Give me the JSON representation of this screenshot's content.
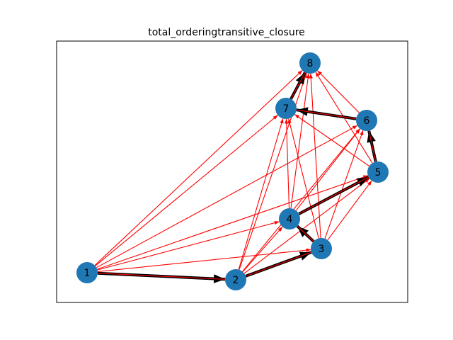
{
  "figure": {
    "title": "total_orderingtransitive_closure"
  },
  "graph": {
    "node_color": "#1f77b4",
    "label_color": "#000000",
    "highlight_edge_color": "#000000",
    "closure_edge_color": "#ff0000",
    "nodes": [
      {
        "id": "1",
        "label": "1"
      },
      {
        "id": "2",
        "label": "2"
      },
      {
        "id": "3",
        "label": "3"
      },
      {
        "id": "4",
        "label": "4"
      },
      {
        "id": "5",
        "label": "5"
      },
      {
        "id": "6",
        "label": "6"
      },
      {
        "id": "7",
        "label": "7"
      },
      {
        "id": "8",
        "label": "8"
      }
    ],
    "ordering_edges": [
      [
        "1",
        "2"
      ],
      [
        "2",
        "3"
      ],
      [
        "3",
        "4"
      ],
      [
        "4",
        "5"
      ],
      [
        "5",
        "6"
      ],
      [
        "6",
        "7"
      ],
      [
        "7",
        "8"
      ]
    ],
    "closure_edges": [
      [
        "1",
        "3"
      ],
      [
        "1",
        "4"
      ],
      [
        "1",
        "5"
      ],
      [
        "1",
        "6"
      ],
      [
        "1",
        "7"
      ],
      [
        "1",
        "8"
      ],
      [
        "2",
        "4"
      ],
      [
        "2",
        "5"
      ],
      [
        "2",
        "6"
      ],
      [
        "2",
        "7"
      ],
      [
        "2",
        "8"
      ],
      [
        "3",
        "5"
      ],
      [
        "3",
        "6"
      ],
      [
        "3",
        "7"
      ],
      [
        "3",
        "8"
      ],
      [
        "4",
        "6"
      ],
      [
        "4",
        "7"
      ],
      [
        "4",
        "8"
      ],
      [
        "5",
        "7"
      ],
      [
        "5",
        "8"
      ],
      [
        "6",
        "8"
      ]
    ]
  }
}
